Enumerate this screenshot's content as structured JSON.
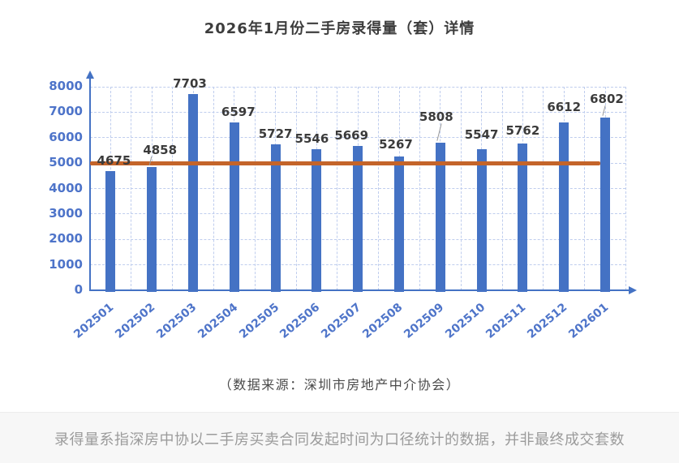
{
  "page": {
    "title": "2026年1月份二手房录得量（套）详情",
    "source_caption": "（数据来源：深圳市房地产中介协会）",
    "footer_note": "录得量系指深房中协以二手房买卖合同发起时间为口径统计的数据，并非最终成交套数"
  },
  "colors": {
    "bar": "#4472c4",
    "axis": "#4472c4",
    "tick_text": "#4e74c9",
    "grid": "#bfcdee",
    "reference_line": "#c4642a",
    "value_label": "#3b3b3b",
    "title_text": "#3d3d3d",
    "source_text": "#4a4a4a",
    "footer_bg": "#f7f7f7",
    "footer_text": "#9b9b9b",
    "leader_line": "#999999"
  },
  "chart_data": {
    "type": "bar",
    "title": "2026年1月份二手房录得量（套）详情",
    "categories": [
      "202501",
      "202502",
      "202503",
      "202504",
      "202505",
      "202506",
      "202507",
      "202508",
      "202509",
      "202510",
      "202511",
      "202512",
      "202601"
    ],
    "values": [
      4675,
      4858,
      7703,
      6597,
      5727,
      5546,
      5669,
      5267,
      5808,
      5547,
      5762,
      6612,
      6802
    ],
    "xlabel": "",
    "ylabel": "",
    "ylim": [
      0,
      8000
    ],
    "ytick_interval": 1000,
    "yticks": [
      0,
      1000,
      2000,
      3000,
      4000,
      5000,
      6000,
      7000,
      8000
    ],
    "grid": "dashed",
    "data_labels": true,
    "legend": "none",
    "reference_line": {
      "value": 5000
    }
  }
}
